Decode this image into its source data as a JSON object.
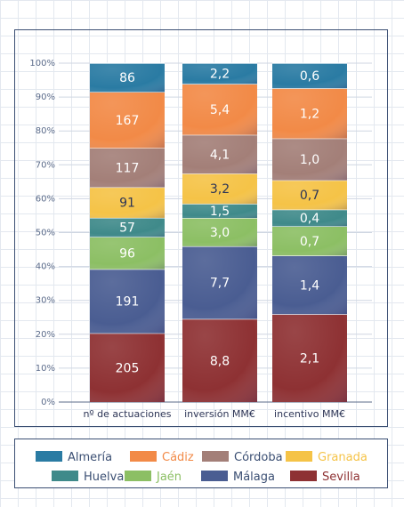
{
  "chart_data": {
    "type": "bar",
    "stacked": true,
    "normalized": true,
    "categories": [
      "nº de actuaciones",
      "inversión MM€",
      "incentivo MM€"
    ],
    "ylim": [
      0,
      100
    ],
    "yticks": [
      "0%",
      "10%",
      "20%",
      "30%",
      "40%",
      "50%",
      "60%",
      "70%",
      "80%",
      "90%",
      "100%"
    ],
    "grid": true,
    "legend_position": "bottom",
    "series": [
      {
        "name": "Sevilla",
        "color": "#8e3133",
        "labels": [
          "205",
          "8,8",
          "2,1"
        ],
        "values": [
          205,
          8.8,
          2.1
        ]
      },
      {
        "name": "Málaga",
        "color": "#4a5d92",
        "labels": [
          "191",
          "7,7",
          "1,4"
        ],
        "values": [
          191,
          7.7,
          1.4
        ]
      },
      {
        "name": "Jaén",
        "color": "#8cbf64",
        "labels": [
          "96",
          "3,0",
          "0,7"
        ],
        "values": [
          96,
          3.0,
          0.7
        ]
      },
      {
        "name": "Huelva",
        "color": "#3f8a8a",
        "labels": [
          "57",
          "1,5",
          "0,4"
        ],
        "values": [
          57,
          1.5,
          0.4
        ]
      },
      {
        "name": "Granada",
        "color": "#f5c347",
        "labels": [
          "91",
          "3,2",
          "0,7"
        ],
        "values": [
          91,
          3.2,
          0.7
        ]
      },
      {
        "name": "Córdoba",
        "color": "#a37f78",
        "labels": [
          "117",
          "4,1",
          "1,0"
        ],
        "values": [
          117,
          4.1,
          1.0
        ]
      },
      {
        "name": "Cádiz",
        "color": "#f28a47",
        "labels": [
          "167",
          "5,4",
          "1,2"
        ],
        "values": [
          167,
          5.4,
          1.2
        ]
      },
      {
        "name": "Almería",
        "color": "#2a7ba3",
        "labels": [
          "86",
          "2,2",
          "0,6"
        ],
        "values": [
          86,
          2.2,
          0.6
        ]
      }
    ],
    "legend": [
      {
        "name": "Almería",
        "color": "#2a7ba3",
        "text_color": "#3b4f73"
      },
      {
        "name": "Cádiz",
        "color": "#f28a47",
        "text_color": "#f28a47"
      },
      {
        "name": "Córdoba",
        "color": "#a37f78",
        "text_color": "#3b4f73"
      },
      {
        "name": "Granada",
        "color": "#f5c347",
        "text_color": "#f5c347"
      },
      {
        "name": "Huelva",
        "color": "#3f8a8a",
        "text_color": "#3b4f73"
      },
      {
        "name": "Jaén",
        "color": "#8cbf64",
        "text_color": "#8cbf64"
      },
      {
        "name": "Málaga",
        "color": "#4a5d92",
        "text_color": "#3b4f73"
      },
      {
        "name": "Sevilla",
        "color": "#8e3133",
        "text_color": "#8e3133"
      }
    ],
    "dark_label_series": [
      "Granada"
    ],
    "axis_color": "#5b6b8a",
    "grid_color": "#cfd6e2"
  }
}
